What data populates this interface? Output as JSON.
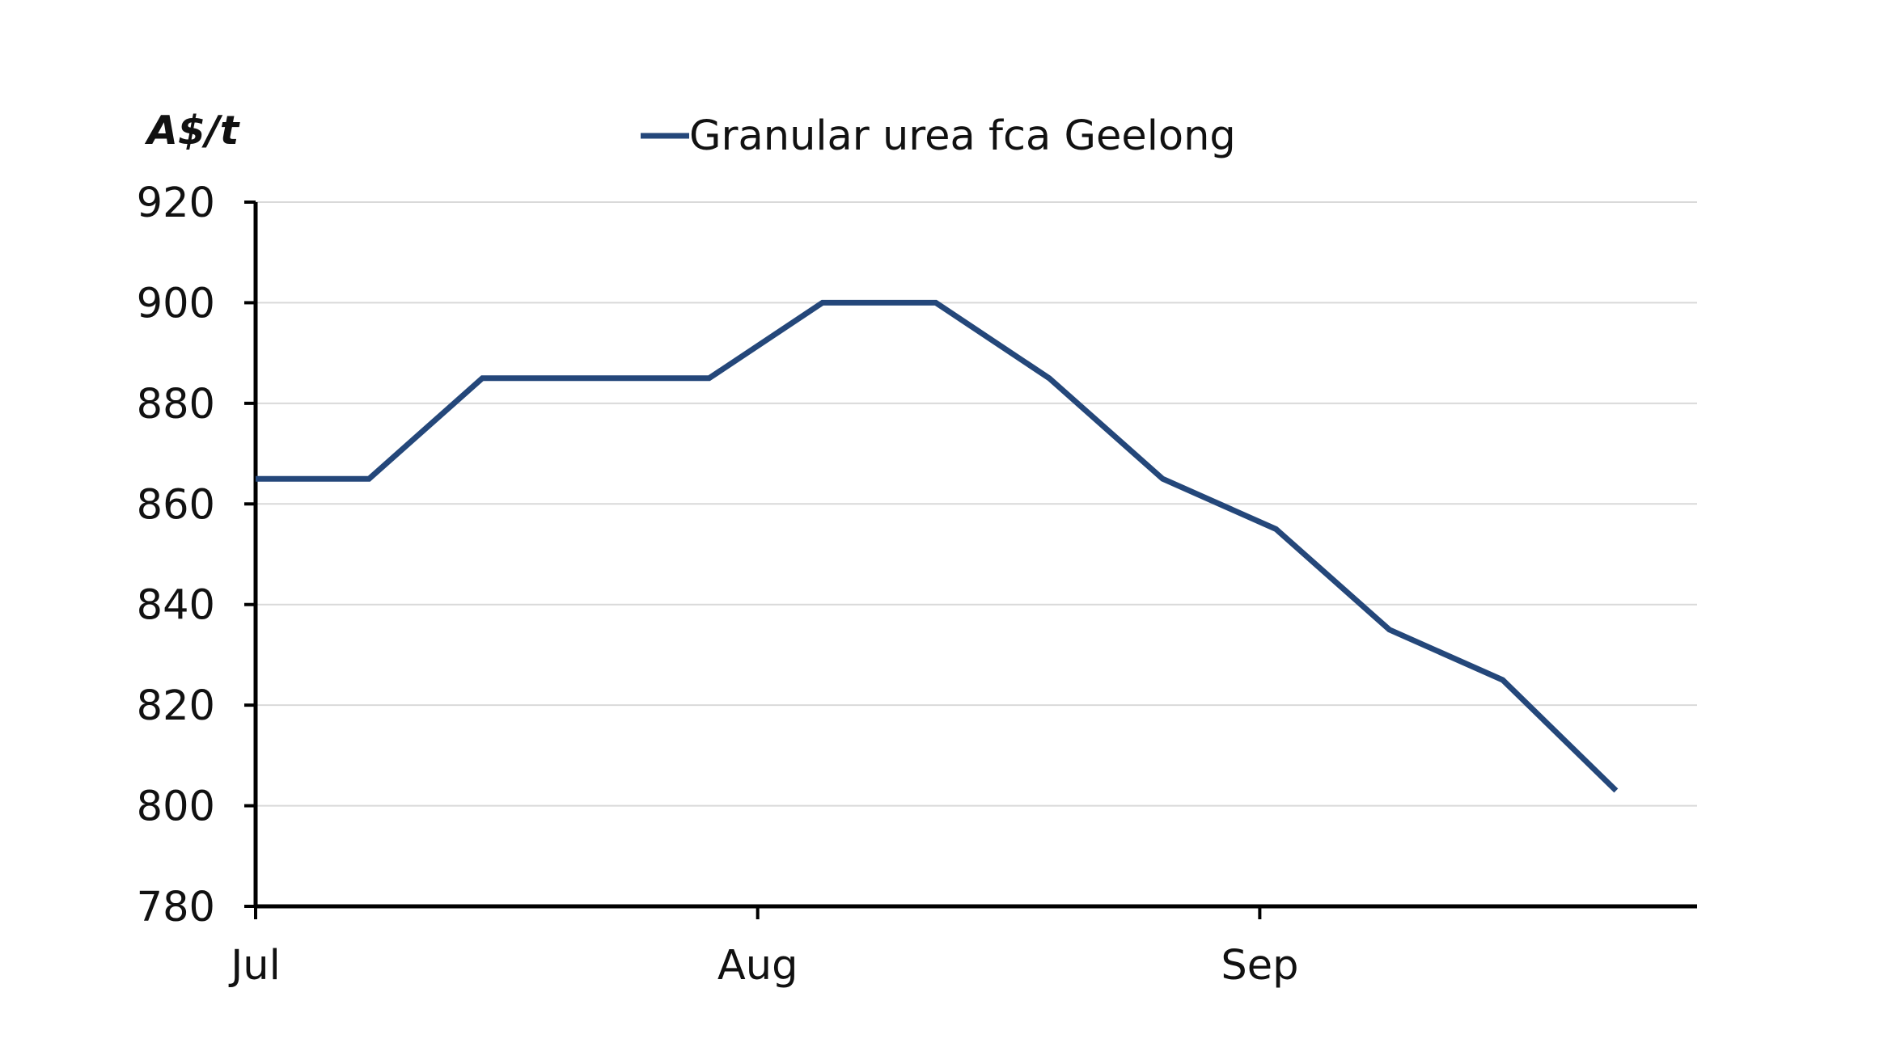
{
  "chart_data": {
    "type": "line",
    "ylabel": "A$/t",
    "ylim": [
      780,
      920
    ],
    "yticks": [
      780,
      800,
      820,
      840,
      860,
      880,
      900,
      920
    ],
    "xlim": [
      "2021-07-01",
      "2021-09-28"
    ],
    "xticks": [
      {
        "date": "2021-07-01",
        "label": "Jul"
      },
      {
        "date": "2021-08-01",
        "label": "Aug"
      },
      {
        "date": "2021-09-01",
        "label": "Sep"
      }
    ],
    "grid": true,
    "legend_position": "top",
    "series": [
      {
        "name": "Granular urea fca Geelong",
        "color": "#24477a",
        "points": [
          {
            "x": "2021-07-01",
            "y": 865
          },
          {
            "x": "2021-07-08",
            "y": 865
          },
          {
            "x": "2021-07-15",
            "y": 885
          },
          {
            "x": "2021-07-22",
            "y": 885
          },
          {
            "x": "2021-07-29",
            "y": 885
          },
          {
            "x": "2021-08-05",
            "y": 900
          },
          {
            "x": "2021-08-12",
            "y": 900
          },
          {
            "x": "2021-08-19",
            "y": 885
          },
          {
            "x": "2021-08-26",
            "y": 865
          },
          {
            "x": "2021-09-02",
            "y": 855
          },
          {
            "x": "2021-09-09",
            "y": 835
          },
          {
            "x": "2021-09-16",
            "y": 825
          },
          {
            "x": "2021-09-23",
            "y": 803
          }
        ]
      }
    ]
  },
  "colors": {
    "axis": "#000000",
    "grid": "#d9d9d9",
    "series": "#24477a"
  }
}
